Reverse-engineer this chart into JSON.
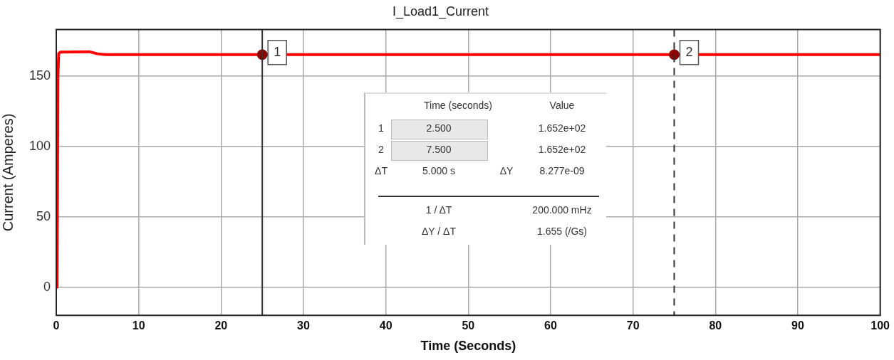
{
  "chart_data": {
    "type": "line",
    "title": "I_Load1_Current",
    "xlabel": "Time (Seconds)",
    "ylabel": "Current (Amperes)",
    "xlim": [
      0,
      100
    ],
    "xticks": [
      0,
      10,
      20,
      30,
      40,
      50,
      60,
      70,
      80,
      90,
      100
    ],
    "ylim": [
      -20,
      183
    ],
    "yticks": [
      0,
      50,
      100,
      150
    ],
    "grid": true,
    "legend": false,
    "series": [
      {
        "color": "#ff0000",
        "x": [
          0,
          0.1,
          0.2,
          0.3,
          0.5,
          4,
          5,
          6,
          25,
          75,
          100
        ],
        "values": [
          0,
          0,
          150,
          166,
          167,
          167.3,
          165.8,
          165.2,
          165.2,
          165.2,
          165.2
        ],
        "marker": "none",
        "line_style": "solid"
      },
      {
        "type": "scatter",
        "color": "#8b0000",
        "x": [
          25,
          75
        ],
        "values": [
          165.2,
          165.2
        ],
        "marker": "circle"
      }
    ],
    "ref_lines": [
      {
        "axis": "x",
        "value": 25,
        "color": "#333333",
        "line_style": "solid"
      },
      {
        "axis": "x",
        "value": 75,
        "color": "#333333",
        "line_style": "dashed"
      }
    ],
    "annotations": [
      "Time (seconds)",
      "Value",
      "1",
      "2.500",
      "1.652e+02",
      "2",
      "7.500",
      "1.652e+02",
      "ΔT",
      "5.000 s",
      "ΔY",
      "8.277e-09",
      "1 / ΔT",
      "200.000 mHz",
      "ΔY / ΔT",
      "1.655 (/Gs)",
      {
        "text": "1",
        "x": 25,
        "y": 165.2
      },
      {
        "text": "2",
        "x": 75,
        "y": 165.2
      }
    ]
  }
}
